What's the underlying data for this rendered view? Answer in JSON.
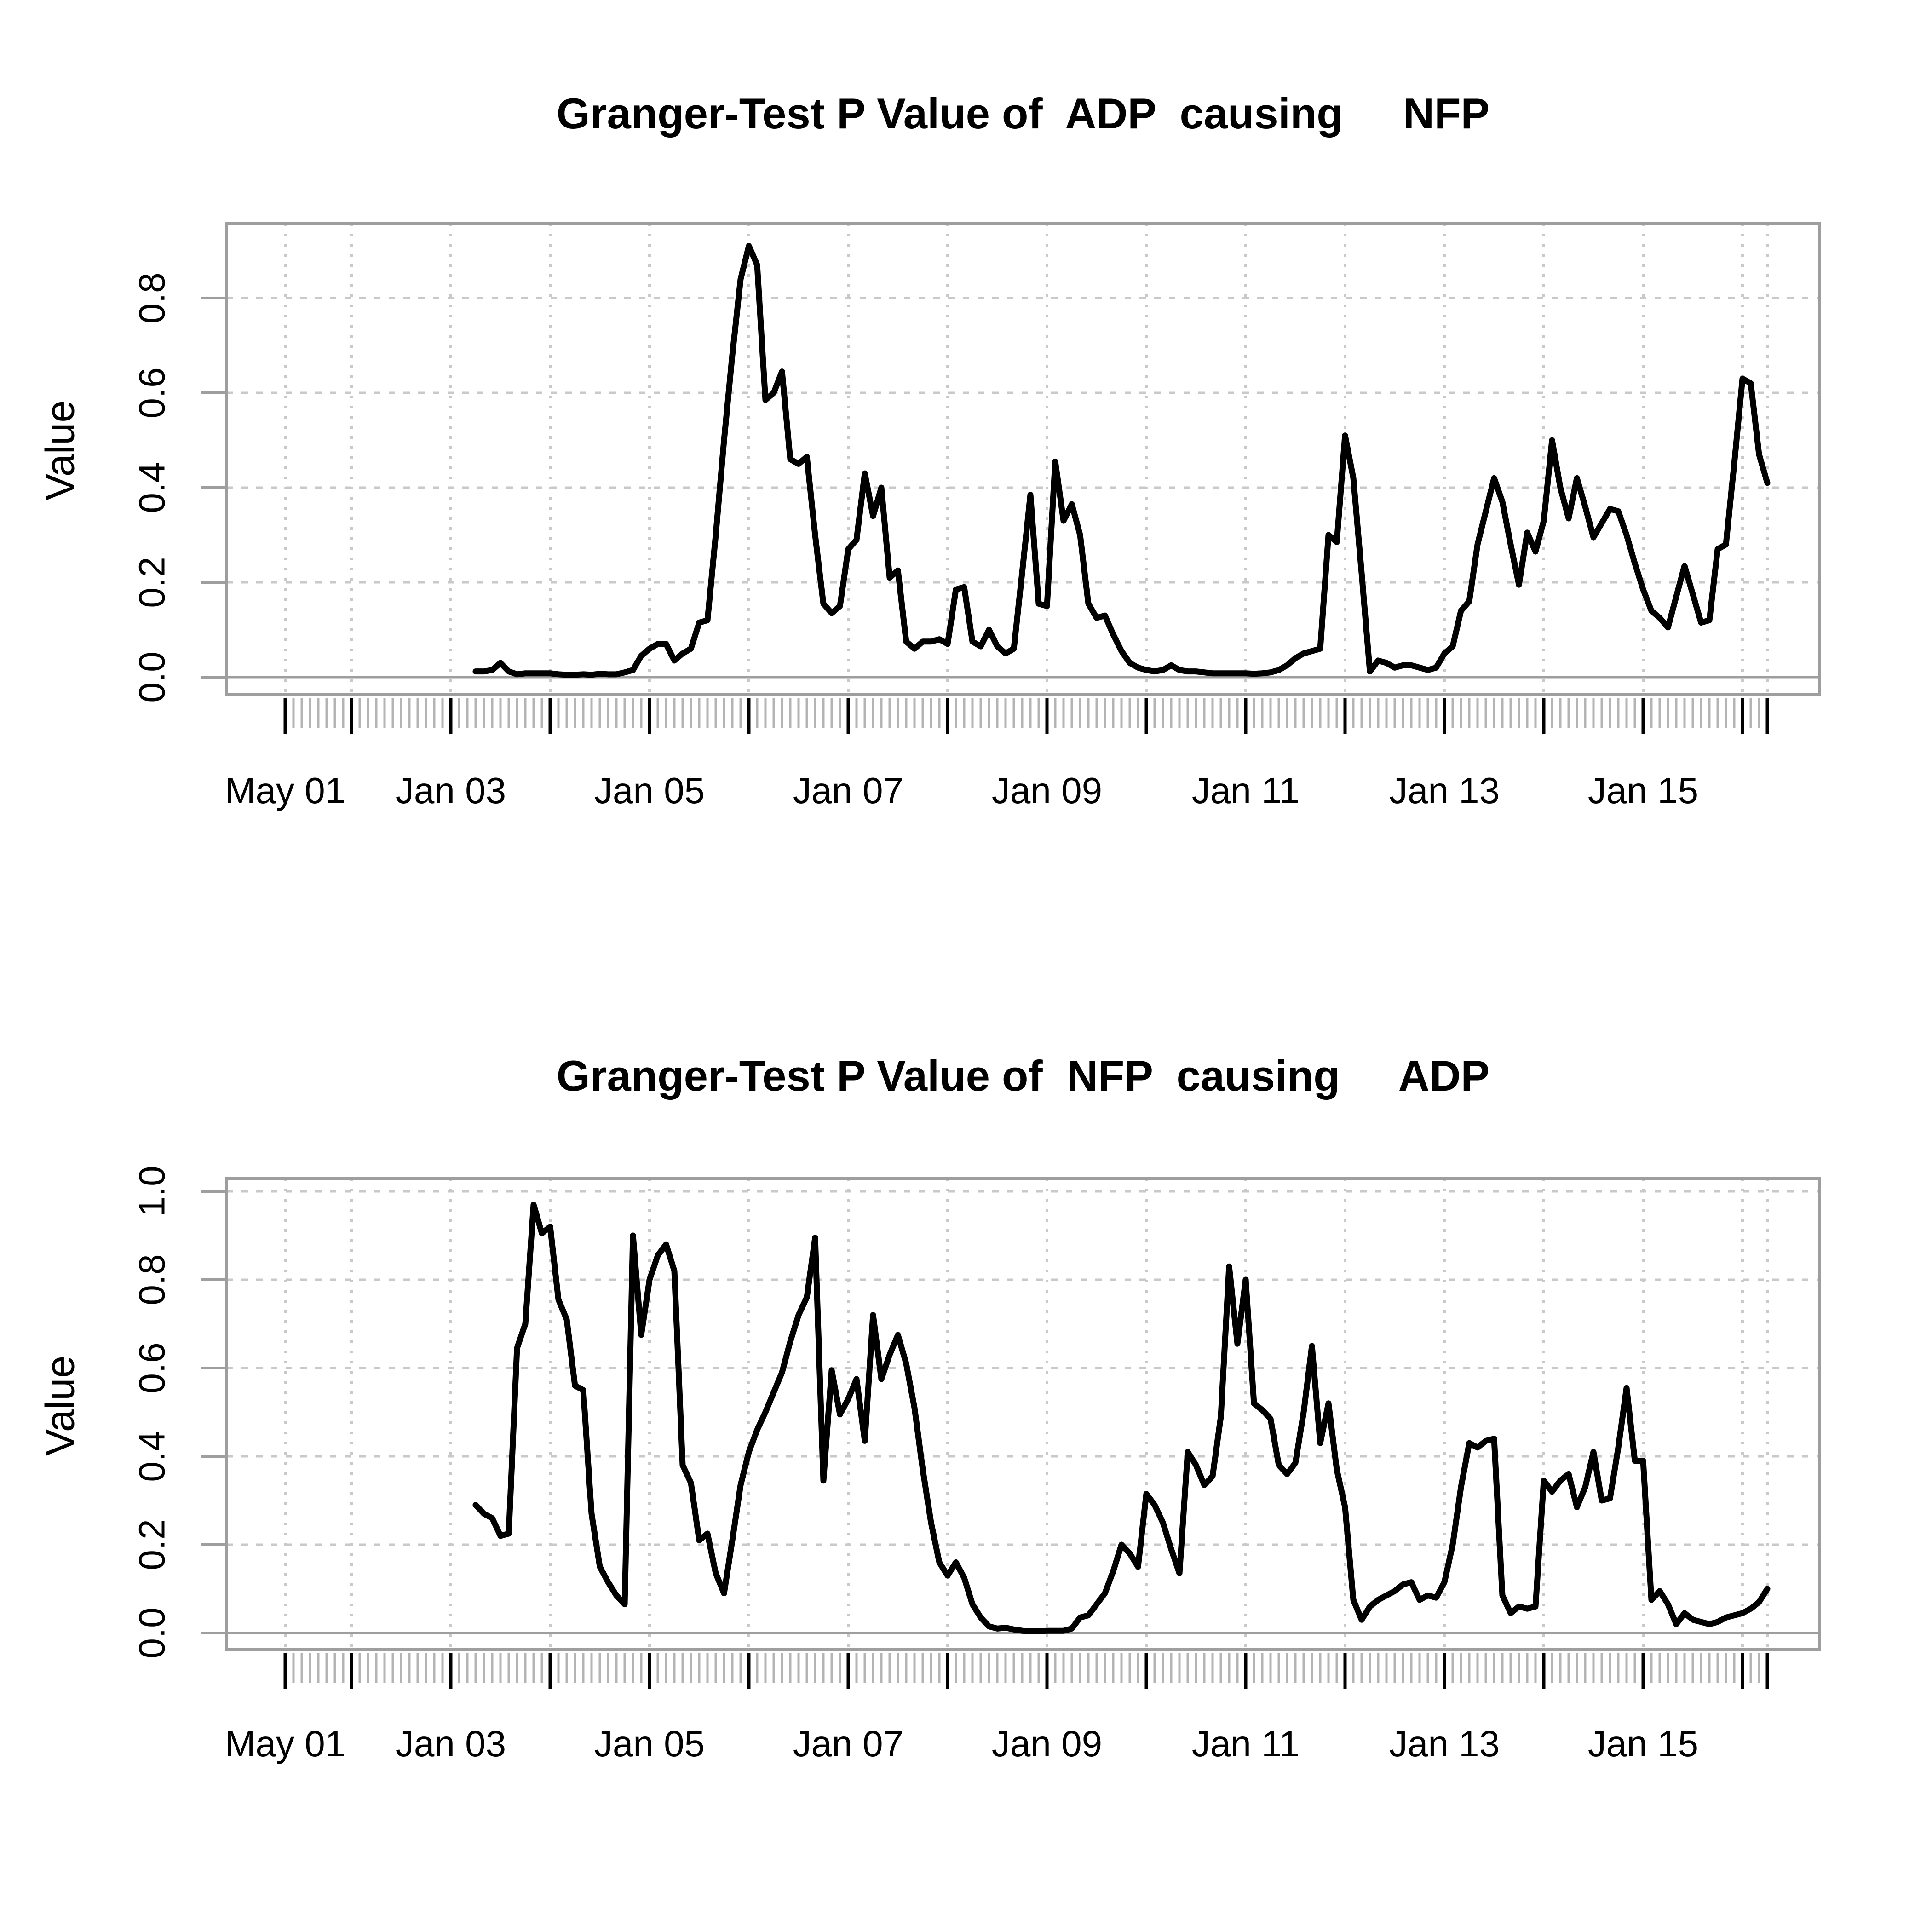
{
  "colors": {
    "background": "#ffffff",
    "line": "#000000",
    "box": "#9e9e9e",
    "zero_line": "#9e9e9e",
    "grid": "#c9c9c9",
    "minor_tick": "#b4b4b4",
    "major_tick": "#000000",
    "text": "#000000"
  },
  "chart_data": [
    {
      "type": "line",
      "title": "Granger-Test P Value of  ADP  causing     NFP",
      "ylabel": "Value",
      "xlabel": "",
      "grid": true,
      "legend_position": "none",
      "ylim": [
        0.0,
        0.95
      ],
      "y_ticks": [
        0.0,
        0.2,
        0.4,
        0.6,
        0.8
      ],
      "y_tick_labels": [
        "0.0",
        "0.2",
        "0.4",
        "0.6",
        "0.8"
      ],
      "x_tick_labels": [
        "May 01",
        "Jan 03",
        "Jan 05",
        "Jan 07",
        "Jan 09",
        "Jan 11",
        "Jan 13",
        "Jan 15"
      ],
      "x_tick_label_months": [
        "2001-05",
        "2003-01",
        "2005-01",
        "2007-01",
        "2009-01",
        "2011-01",
        "2013-01",
        "2015-01"
      ],
      "x_axis_start": "2001-05",
      "x_axis_end": "2016-04",
      "series": [
        {
          "name": "p_value_adp_causing_nfp",
          "start": "2003-04",
          "freq": "monthly",
          "values": [
            0.012,
            0.012,
            0.015,
            0.03,
            0.012,
            0.006,
            0.008,
            0.008,
            0.008,
            0.008,
            0.006,
            0.005,
            0.005,
            0.006,
            0.005,
            0.007,
            0.006,
            0.006,
            0.01,
            0.015,
            0.045,
            0.06,
            0.07,
            0.07,
            0.035,
            0.05,
            0.06,
            0.115,
            0.12,
            0.3,
            0.5,
            0.68,
            0.84,
            0.91,
            0.87,
            0.585,
            0.6,
            0.645,
            0.46,
            0.45,
            0.465,
            0.3,
            0.155,
            0.135,
            0.15,
            0.27,
            0.29,
            0.43,
            0.34,
            0.4,
            0.21,
            0.225,
            0.075,
            0.06,
            0.075,
            0.075,
            0.08,
            0.07,
            0.185,
            0.19,
            0.075,
            0.065,
            0.1,
            0.065,
            0.05,
            0.06,
            0.22,
            0.385,
            0.155,
            0.15,
            0.455,
            0.33,
            0.365,
            0.3,
            0.155,
            0.125,
            0.13,
            0.09,
            0.055,
            0.03,
            0.02,
            0.015,
            0.012,
            0.015,
            0.025,
            0.015,
            0.012,
            0.012,
            0.01,
            0.008,
            0.008,
            0.008,
            0.008,
            0.008,
            0.007,
            0.008,
            0.01,
            0.015,
            0.025,
            0.04,
            0.05,
            0.055,
            0.06,
            0.3,
            0.285,
            0.51,
            0.42,
            0.22,
            0.012,
            0.035,
            0.03,
            0.02,
            0.025,
            0.025,
            0.02,
            0.015,
            0.02,
            0.05,
            0.065,
            0.14,
            0.16,
            0.28,
            0.35,
            0.42,
            0.37,
            0.28,
            0.195,
            0.305,
            0.265,
            0.33,
            0.5,
            0.4,
            0.335,
            0.42,
            0.36,
            0.295,
            0.325,
            0.355,
            0.35,
            0.3,
            0.24,
            0.185,
            0.14,
            0.125,
            0.105,
            0.17,
            0.235,
            0.175,
            0.115,
            0.12,
            0.27,
            0.28,
            0.45,
            0.63,
            0.62,
            0.47,
            0.41
          ]
        }
      ]
    },
    {
      "type": "line",
      "title": "Granger-Test P Value of  NFP  causing     ADP",
      "ylabel": "Value",
      "xlabel": "",
      "grid": true,
      "legend_position": "none",
      "ylim": [
        0.0,
        1.05
      ],
      "y_ticks": [
        0.0,
        0.2,
        0.4,
        0.6,
        0.8,
        1.0
      ],
      "y_tick_labels": [
        "0.0",
        "0.2",
        "0.4",
        "0.6",
        "0.8",
        "1.0"
      ],
      "x_tick_labels": [
        "May 01",
        "Jan 03",
        "Jan 05",
        "Jan 07",
        "Jan 09",
        "Jan 11",
        "Jan 13",
        "Jan 15"
      ],
      "x_tick_label_months": [
        "2001-05",
        "2003-01",
        "2005-01",
        "2007-01",
        "2009-01",
        "2011-01",
        "2013-01",
        "2015-01"
      ],
      "x_axis_start": "2001-05",
      "x_axis_end": "2016-04",
      "series": [
        {
          "name": "p_value_nfp_causing_adp",
          "start": "2003-04",
          "freq": "monthly",
          "values": [
            0.29,
            0.27,
            0.26,
            0.22,
            0.225,
            0.645,
            0.7,
            0.97,
            0.905,
            0.92,
            0.755,
            0.71,
            0.56,
            0.55,
            0.27,
            0.15,
            0.115,
            0.085,
            0.065,
            0.9,
            0.675,
            0.8,
            0.855,
            0.88,
            0.82,
            0.38,
            0.34,
            0.21,
            0.225,
            0.135,
            0.09,
            0.21,
            0.335,
            0.41,
            0.46,
            0.5,
            0.545,
            0.59,
            0.66,
            0.72,
            0.76,
            0.895,
            0.345,
            0.595,
            0.495,
            0.53,
            0.575,
            0.435,
            0.72,
            0.575,
            0.63,
            0.675,
            0.61,
            0.51,
            0.37,
            0.25,
            0.16,
            0.13,
            0.16,
            0.125,
            0.065,
            0.035,
            0.015,
            0.01,
            0.012,
            0.008,
            0.005,
            0.004,
            0.004,
            0.005,
            0.005,
            0.005,
            0.01,
            0.035,
            0.04,
            0.065,
            0.09,
            0.14,
            0.2,
            0.18,
            0.15,
            0.315,
            0.29,
            0.25,
            0.19,
            0.135,
            0.41,
            0.38,
            0.335,
            0.355,
            0.49,
            0.83,
            0.655,
            0.8,
            0.52,
            0.505,
            0.485,
            0.38,
            0.36,
            0.385,
            0.5,
            0.65,
            0.43,
            0.52,
            0.37,
            0.285,
            0.075,
            0.03,
            0.06,
            0.075,
            0.085,
            0.095,
            0.11,
            0.115,
            0.075,
            0.085,
            0.08,
            0.115,
            0.2,
            0.33,
            0.43,
            0.42,
            0.435,
            0.44,
            0.085,
            0.045,
            0.06,
            0.055,
            0.06,
            0.345,
            0.32,
            0.345,
            0.36,
            0.285,
            0.33,
            0.41,
            0.3,
            0.305,
            0.42,
            0.555,
            0.39,
            0.39,
            0.075,
            0.095,
            0.065,
            0.02,
            0.045,
            0.03,
            0.025,
            0.02,
            0.025,
            0.035,
            0.04,
            0.045,
            0.055,
            0.07,
            0.1
          ]
        }
      ]
    }
  ]
}
